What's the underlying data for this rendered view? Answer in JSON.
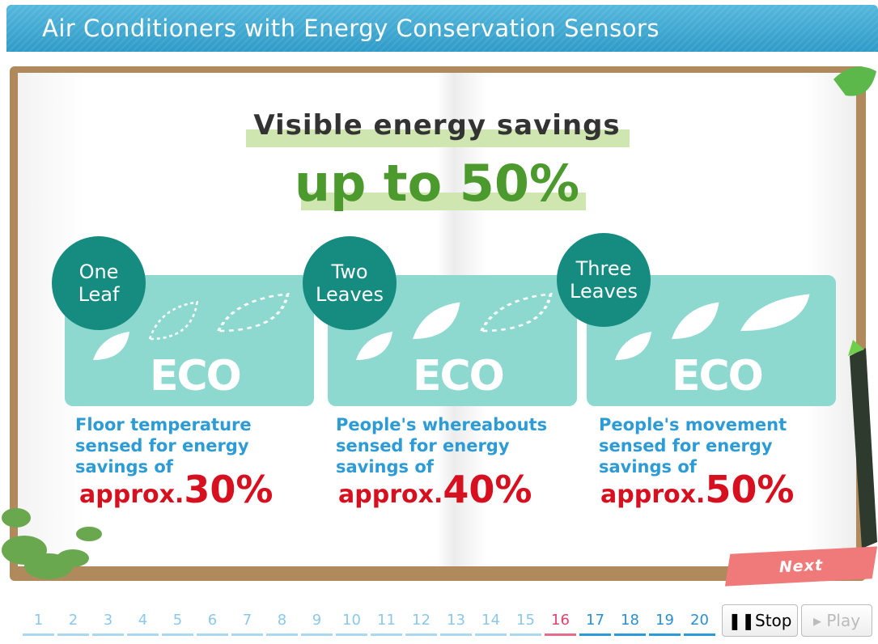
{
  "header": {
    "title": "Air Conditioners with Energy Conservation Sensors"
  },
  "slide": {
    "heading": "Visible energy savings",
    "headline": "up to 50%",
    "cards": [
      {
        "badge": [
          "One",
          "Leaf"
        ],
        "eco": "ECO",
        "description": [
          "Floor temperature",
          "sensed for energy",
          "savings of"
        ],
        "prefix": "approx.",
        "amount": "30%"
      },
      {
        "badge": [
          "Two",
          "Leaves"
        ],
        "eco": "ECO",
        "description": [
          "People's whereabouts",
          "sensed for energy",
          "savings of"
        ],
        "prefix": "approx.",
        "amount": "40%"
      },
      {
        "badge": [
          "Three",
          "Leaves"
        ],
        "eco": "ECO",
        "description": [
          "People's movement",
          "sensed for energy",
          "savings of"
        ],
        "prefix": "approx.",
        "amount": "50%"
      }
    ]
  },
  "navigation": {
    "next": "Next",
    "pages": [
      1,
      2,
      3,
      4,
      5,
      6,
      7,
      8,
      9,
      10,
      11,
      12,
      13,
      14,
      15,
      16,
      17,
      18,
      19,
      20
    ],
    "current": 16,
    "stop": "Stop",
    "play": "Play"
  }
}
